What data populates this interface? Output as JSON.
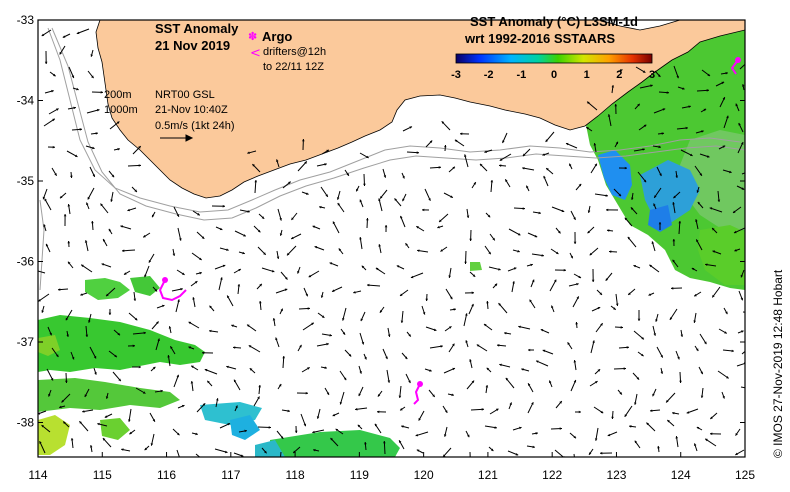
{
  "map": {
    "title_line1": "SST Anomaly",
    "title_line2": "21 Nov 2019",
    "legend_argo_label": "Argo",
    "legend_drifters_label": "drifters@12h",
    "legend_drifters_until": "to 22/11 12Z",
    "contour_200": "200m",
    "contour_1000": "1000m",
    "current_source": "NRT00 GSL",
    "current_time": "21-Nov 10:40Z",
    "vector_scale": "0.5m/s (1kt 24h)",
    "colorbar_title": "SST Anomaly (°C) L3SM-1d",
    "colorbar_subtitle": "wrt 1992-2016 SSTAARS",
    "colorbar_ticks": [
      "-3",
      "-2",
      "-1",
      "0",
      "1",
      "2",
      "3"
    ],
    "credit": "© IMOS 27-Nov-2019 12:48 Hobart",
    "lat_labels": [
      "-33",
      "-34",
      "-35",
      "-36",
      "-37",
      "-38"
    ],
    "lon_labels": [
      "114",
      "115",
      "116",
      "117",
      "118",
      "119",
      "120",
      "121",
      "122",
      "123",
      "124",
      "125"
    ],
    "colors": {
      "land": "#fbc99b",
      "argo": "#ff00ff",
      "anomaly_warm": "#49d400",
      "anomaly_cool": "#1e8fe0"
    }
  }
}
